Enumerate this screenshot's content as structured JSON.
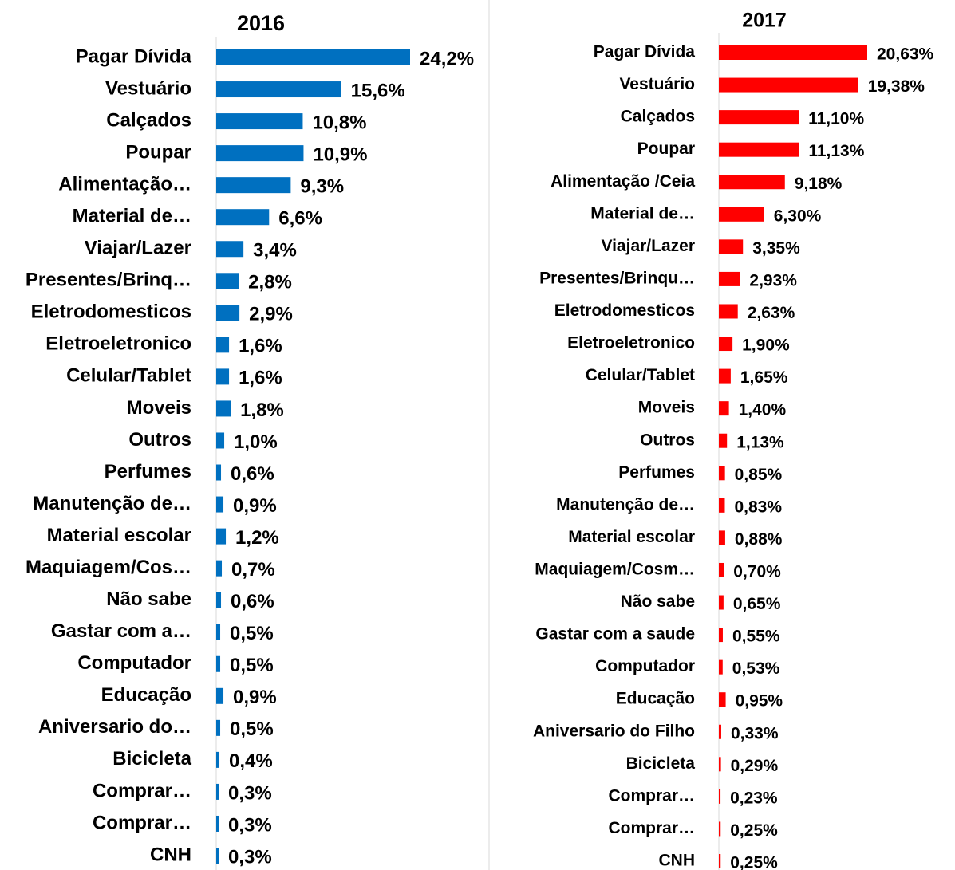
{
  "chart_data": [
    {
      "type": "bar",
      "orientation": "horizontal",
      "title": "2016",
      "color": "#0070c0",
      "categories": [
        "Pagar Dívida",
        "Vestuário",
        "Calçados",
        "Poupar",
        "Alimentação…",
        "Material de…",
        "Viajar/Lazer",
        "Presentes/Brinq…",
        "Eletrodomesticos",
        "Eletroeletronico",
        "Celular/Tablet",
        "Moveis",
        "Outros",
        "Perfumes",
        "Manutenção de…",
        "Material escolar",
        "Maquiagem/Cos…",
        "Não sabe",
        "Gastar com a…",
        "Computador",
        "Educação",
        "Aniversario do…",
        "Bicicleta",
        "Comprar…",
        "Comprar…",
        "CNH"
      ],
      "values": [
        24.2,
        15.6,
        10.8,
        10.9,
        9.3,
        6.6,
        3.4,
        2.8,
        2.9,
        1.6,
        1.6,
        1.8,
        1.0,
        0.6,
        0.9,
        1.2,
        0.7,
        0.6,
        0.5,
        0.5,
        0.9,
        0.5,
        0.4,
        0.3,
        0.3,
        0.3
      ],
      "value_labels": [
        "24,2%",
        "15,6%",
        "10,8%",
        "10,9%",
        "9,3%",
        "6,6%",
        "3,4%",
        "2,8%",
        "2,9%",
        "1,6%",
        "1,6%",
        "1,8%",
        "1,0%",
        "0,6%",
        "0,9%",
        "1,2%",
        "0,7%",
        "0,6%",
        "0,5%",
        "0,5%",
        "0,9%",
        "0,5%",
        "0,4%",
        "0,3%",
        "0,3%",
        "0,3%"
      ]
    },
    {
      "type": "bar",
      "orientation": "horizontal",
      "title": "2017",
      "color": "#ff0000",
      "categories": [
        "Pagar Dívida",
        "Vestuário",
        "Calçados",
        "Poupar",
        "Alimentação /Ceia",
        "Material de…",
        "Viajar/Lazer",
        "Presentes/Brinqu…",
        "Eletrodomesticos",
        "Eletroeletronico",
        "Celular/Tablet",
        "Moveis",
        "Outros",
        "Perfumes",
        "Manutenção de…",
        "Material escolar",
        "Maquiagem/Cosm…",
        "Não sabe",
        "Gastar com a saude",
        "Computador",
        "Educação",
        "Aniversario do Filho",
        "Bicicleta",
        "Comprar…",
        "Comprar…",
        "CNH"
      ],
      "values": [
        20.63,
        19.38,
        11.1,
        11.13,
        9.18,
        6.3,
        3.35,
        2.93,
        2.63,
        1.9,
        1.65,
        1.4,
        1.13,
        0.85,
        0.83,
        0.88,
        0.7,
        0.65,
        0.55,
        0.53,
        0.95,
        0.33,
        0.29,
        0.23,
        0.25,
        0.25
      ],
      "value_labels": [
        "20,63%",
        "19,38%",
        "11,10%",
        "11,13%",
        "9,18%",
        "6,30%",
        "3,35%",
        "2,93%",
        "2,63%",
        "1,90%",
        "1,65%",
        "1,40%",
        "1,13%",
        "0,85%",
        "0,83%",
        "0,88%",
        "0,70%",
        "0,65%",
        "0,55%",
        "0,53%",
        "0,95%",
        "0,33%",
        "0,29%",
        "0,23%",
        "0,25%",
        "0,25%"
      ]
    }
  ]
}
